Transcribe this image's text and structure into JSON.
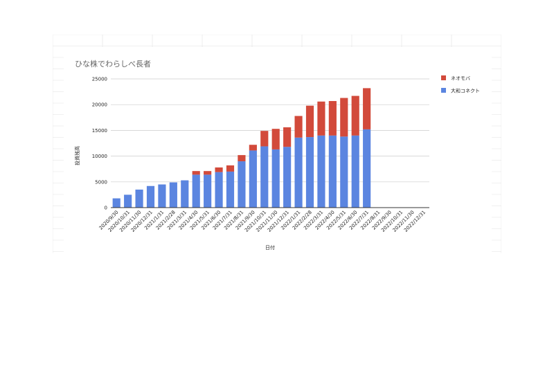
{
  "chart_data": {
    "type": "bar",
    "stacked": true,
    "title": "ひな株でわらしべ長者",
    "xlabel": "日付",
    "ylabel": "投資残高",
    "ylim": [
      0,
      25000
    ],
    "yticks": [
      "0",
      "5000",
      "10000",
      "15000",
      "20000",
      "25000"
    ],
    "grid": true,
    "legend_position": "right-top",
    "categories": [
      "2020/9/30",
      "2020/10/31",
      "2020/11/30",
      "2020/12/31",
      "2021/1/31",
      "2021/2/28",
      "2021/3/31",
      "2021/4/30",
      "2021/5/31",
      "2021/6/30",
      "2021/7/31",
      "2021/8/31",
      "2021/9/30",
      "2021/10/31",
      "2021/11/30",
      "2021/12/31",
      "2022/1/31",
      "2022/2/28",
      "2022/3/31",
      "2022/4/30",
      "2022/5/31",
      "2022/6/30",
      "2022/7/31",
      "2022/8/31",
      "2022/9/30",
      "2022/10/31",
      "2022/11/30",
      "2022/12/31"
    ],
    "series": [
      {
        "name": "大和コネクト",
        "color": "#5b85e0",
        "values": [
          1800,
          2500,
          3500,
          4200,
          4500,
          4900,
          5300,
          6400,
          6400,
          6900,
          7000,
          9000,
          11100,
          11900,
          11300,
          11800,
          13600,
          13700,
          14000,
          14000,
          13800,
          14000,
          15200,
          null,
          null,
          null,
          null,
          null
        ]
      },
      {
        "name": "ネオモバ",
        "color": "#d24a3b",
        "values": [
          0,
          0,
          0,
          0,
          0,
          0,
          0,
          700,
          700,
          900,
          1200,
          1200,
          1100,
          3000,
          4000,
          3800,
          4200,
          6100,
          6600,
          6700,
          7500,
          7700,
          8000,
          null,
          null,
          null,
          null,
          null
        ]
      }
    ]
  }
}
